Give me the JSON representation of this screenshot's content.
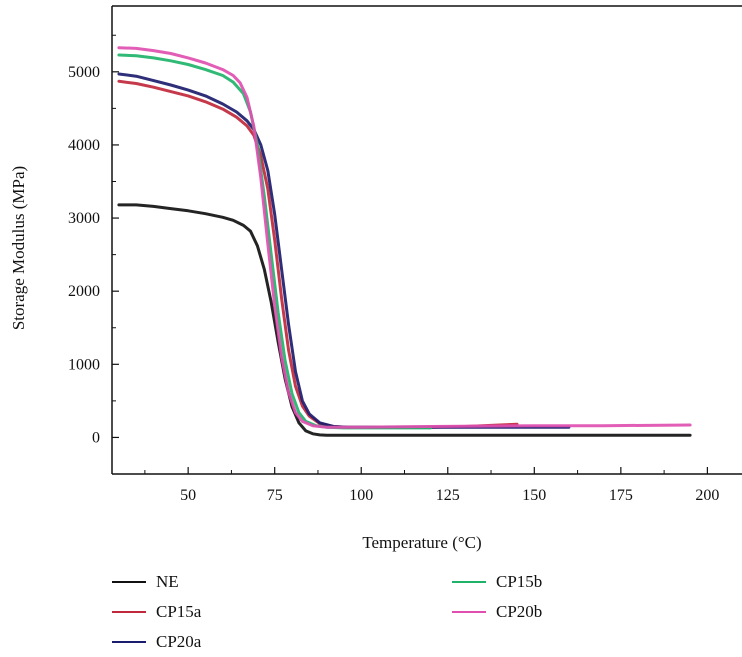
{
  "chart_data": {
    "type": "line",
    "title": "",
    "xlabel": "Temperature (°C)",
    "ylabel": "Storage Modulus (MPa)",
    "xlim": [
      28,
      210
    ],
    "ylim": [
      -500,
      5900
    ],
    "xticks": [
      50,
      75,
      100,
      125,
      150,
      175,
      200
    ],
    "yticks": [
      0,
      1000,
      2000,
      3000,
      4000,
      5000
    ],
    "grid": false,
    "legend_position": "bottom",
    "series": [
      {
        "name": "NE",
        "color": "#111111",
        "x": [
          30,
          35,
          40,
          45,
          50,
          55,
          60,
          63,
          66,
          68,
          70,
          72,
          74,
          76,
          78,
          80,
          82,
          84,
          86,
          88,
          90,
          95,
          100,
          120,
          150,
          195
        ],
        "y": [
          3180,
          3180,
          3160,
          3130,
          3100,
          3060,
          3010,
          2970,
          2900,
          2820,
          2620,
          2300,
          1850,
          1300,
          800,
          420,
          200,
          90,
          50,
          35,
          30,
          30,
          30,
          30,
          30,
          30
        ]
      },
      {
        "name": "CP15a",
        "color": "#c0283c",
        "x": [
          30,
          35,
          40,
          45,
          50,
          55,
          60,
          64,
          67,
          69,
          71,
          73,
          75,
          77,
          79,
          81,
          83,
          85,
          88,
          92,
          96,
          100,
          110,
          120,
          130,
          140,
          145
        ],
        "y": [
          4870,
          4840,
          4790,
          4730,
          4670,
          4590,
          4490,
          4380,
          4260,
          4130,
          3850,
          3400,
          2700,
          1900,
          1200,
          700,
          430,
          290,
          190,
          150,
          140,
          140,
          140,
          140,
          150,
          170,
          180
        ]
      },
      {
        "name": "CP20a",
        "color": "#1c1c6e",
        "x": [
          30,
          35,
          40,
          45,
          50,
          55,
          60,
          64,
          67,
          69,
          71,
          73,
          75,
          77,
          79,
          81,
          83,
          85,
          88,
          92,
          96,
          100,
          110,
          120,
          130,
          140,
          150,
          160
        ],
        "y": [
          4970,
          4940,
          4880,
          4820,
          4750,
          4670,
          4560,
          4450,
          4330,
          4210,
          4000,
          3650,
          3050,
          2300,
          1550,
          900,
          500,
          320,
          200,
          150,
          140,
          140,
          140,
          140,
          140,
          140,
          140,
          140
        ]
      },
      {
        "name": "CP15b",
        "color": "#1fb36a",
        "x": [
          30,
          35,
          40,
          45,
          50,
          55,
          60,
          63,
          66,
          68,
          70,
          72,
          74,
          76,
          78,
          80,
          82,
          84,
          87,
          90,
          95,
          100,
          110,
          120
        ],
        "y": [
          5230,
          5220,
          5190,
          5150,
          5100,
          5030,
          4950,
          4860,
          4700,
          4450,
          4000,
          3300,
          2500,
          1700,
          1050,
          600,
          340,
          220,
          160,
          140,
          130,
          130,
          130,
          130
        ]
      },
      {
        "name": "CP20b",
        "color": "#e04fb0",
        "x": [
          30,
          35,
          40,
          45,
          50,
          55,
          60,
          63,
          65,
          67,
          69,
          71,
          73,
          75,
          77,
          79,
          81,
          83,
          86,
          90,
          95,
          100,
          120,
          150,
          170,
          195
        ],
        "y": [
          5330,
          5320,
          5290,
          5250,
          5190,
          5120,
          5030,
          4950,
          4850,
          4650,
          4250,
          3550,
          2650,
          1800,
          1100,
          620,
          340,
          220,
          160,
          140,
          140,
          140,
          150,
          160,
          160,
          170
        ]
      }
    ]
  }
}
